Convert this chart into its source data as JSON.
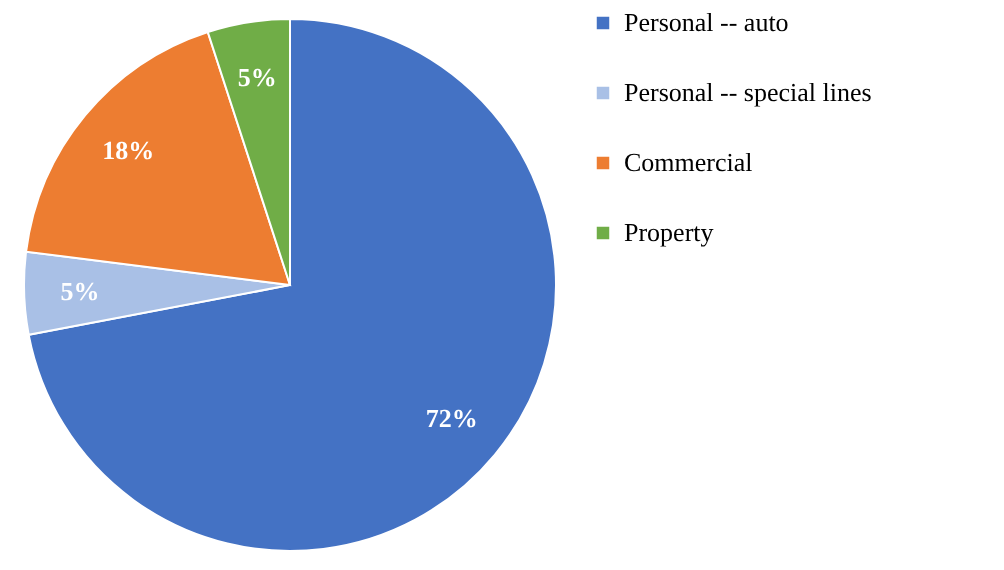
{
  "chart_data": {
    "type": "pie",
    "categories": [
      "Personal -- auto",
      "Personal -- special lines",
      "Commercial",
      "Property"
    ],
    "values": [
      72,
      5,
      18,
      5
    ],
    "colors": [
      "#4472c4",
      "#a9c0e6",
      "#ed7d31",
      "#70ad47"
    ],
    "value_labels": [
      "72%",
      "5%",
      "18%",
      "5%"
    ],
    "legend": "right"
  }
}
